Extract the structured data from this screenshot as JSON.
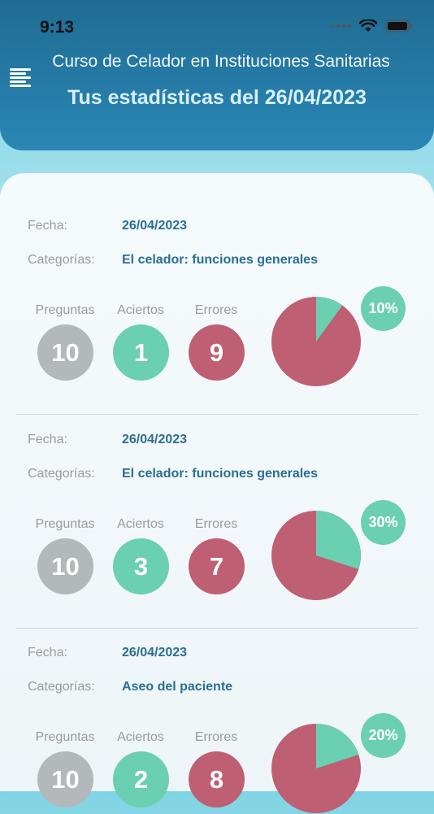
{
  "status": {
    "time": "9:13"
  },
  "header": {
    "app_title": "Curso de Celador en Instituciones Sanitarias",
    "stats_title": "Tus estadísticas del 26/04/2023"
  },
  "labels": {
    "fecha": "Fecha:",
    "categorias": "Categorías:",
    "preguntas": "Preguntas",
    "aciertos": "Aciertos",
    "errores": "Errores"
  },
  "colors": {
    "correct": "#6bcfb1",
    "wrong": "#bf5f73",
    "total": "#b3b8bb",
    "header": "#1f6c93"
  },
  "entries": [
    {
      "fecha": "26/04/2023",
      "categoria": "El celador: funciones generales",
      "preguntas": "10",
      "aciertos": "1",
      "errores": "9",
      "porcentaje": "10%",
      "fraction_correct": 0.1
    },
    {
      "fecha": "26/04/2023",
      "categoria": "El celador: funciones generales",
      "preguntas": "10",
      "aciertos": "3",
      "errores": "7",
      "porcentaje": "30%",
      "fraction_correct": 0.3
    },
    {
      "fecha": "26/04/2023",
      "categoria": "Aseo del paciente",
      "preguntas": "10",
      "aciertos": "2",
      "errores": "8",
      "porcentaje": "20%",
      "fraction_correct": 0.2
    }
  ]
}
